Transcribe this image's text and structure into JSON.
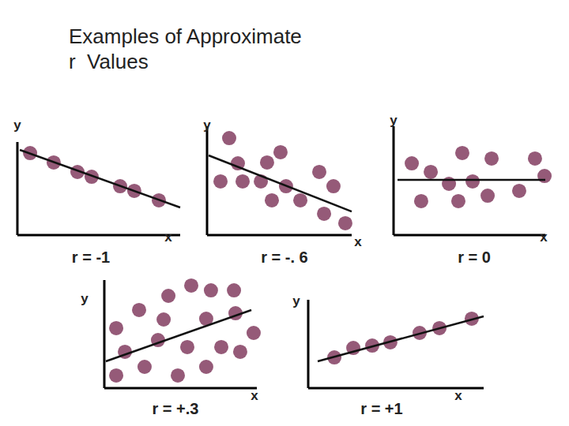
{
  "title": [
    "Examples of Approximate",
    "r  Values"
  ],
  "chart_data": [
    {
      "type": "scatter",
      "title": "r = -1",
      "x_label": "x",
      "y_label": "y",
      "x": [
        0.78,
        2.23,
        3.69,
        4.56,
        6.31,
        7.18,
        8.69
      ],
      "y": [
        8.81,
        7.8,
        6.78,
        6.27,
        5.25,
        4.75,
        3.73
      ],
      "fit_x": [
        0.15,
        10
      ],
      "fit_y": [
        9.15,
        2.97
      ],
      "xlim": [
        0,
        10
      ],
      "ylim": [
        0,
        10
      ],
      "tick_labels": false,
      "color": "#955a78",
      "marker": "circle"
    },
    {
      "type": "scatter",
      "title": "r = -. 6",
      "x_label": "x",
      "y_label": "y",
      "x": [
        1.53,
        2.13,
        4.15,
        5.08,
        7.76,
        0.93,
        2.46,
        3.72,
        5.46,
        8.74,
        4.48,
        6.45,
        8.09,
        9.56
      ],
      "y": [
        8.91,
        6.59,
        6.67,
        7.61,
        5.8,
        4.93,
        4.93,
        4.93,
        4.49,
        4.49,
        3.19,
        3.19,
        1.96,
        1.09
      ],
      "fit_x": [
        0.11,
        10
      ],
      "fit_y": [
        7.32,
        2.17
      ],
      "xlim": [
        0,
        10
      ],
      "ylim": [
        0,
        10
      ],
      "tick_labels": false,
      "color": "#955a78",
      "marker": "circle"
    },
    {
      "type": "scatter",
      "title": "r = 0",
      "x_label": "x",
      "y_label": "y",
      "x": [
        1.2,
        2.45,
        4.53,
        6.46,
        9.32,
        9.95,
        1.82,
        3.65,
        5.21,
        4.27,
        6.2,
        8.28
      ],
      "y": [
        6.59,
        5.8,
        7.54,
        7.03,
        7.03,
        5.43,
        3.12,
        4.71,
        4.93,
        3.12,
        3.62,
        4.06
      ],
      "fit_x": [
        0.26,
        10
      ],
      "fit_y": [
        5.07,
        5.07
      ],
      "xlim": [
        0,
        10
      ],
      "ylim": [
        0,
        10
      ],
      "tick_labels": false,
      "color": "#955a78",
      "marker": "circle"
    },
    {
      "type": "scatter",
      "title": "r = +.3",
      "x_label": "x",
      "y_label": "y",
      "x": [
        5.7,
        6.99,
        8.5,
        4.2,
        2.28,
        3.89,
        6.68,
        8.6,
        0.78,
        9.79,
        3.52,
        5.44,
        7.67,
        1.35,
        8.91,
        0.78,
        2.64,
        4.82,
        6.68
      ],
      "y": [
        9.49,
        9.05,
        9.05,
        8.54,
        7.23,
        6.35,
        6.42,
        6.93,
        5.55,
        5.11,
        4.45,
        3.8,
        3.8,
        3.36,
        3.36,
        1.17,
        1.97,
        1.17,
        1.97
      ],
      "fit_x": [
        0.1,
        9.64
      ],
      "fit_y": [
        2.48,
        7.23
      ],
      "xlim": [
        0,
        10
      ],
      "ylim": [
        0,
        10
      ],
      "tick_labels": false,
      "color": "#955a78",
      "marker": "circle"
    },
    {
      "type": "scatter",
      "title": "r = +1",
      "x_label": "x",
      "y_label": "y",
      "x": [
        1.49,
        2.57,
        3.65,
        4.68,
        6.35,
        7.48,
        9.32
      ],
      "y": [
        3.48,
        4.55,
        4.82,
        5.18,
        6.25,
        6.79,
        7.86
      ],
      "fit_x": [
        0.54,
        10
      ],
      "fit_y": [
        3.04,
        8.13
      ],
      "xlim": [
        0,
        10
      ],
      "ylim": [
        0,
        10
      ],
      "tick_labels": false,
      "color": "#955a78",
      "marker": "circle"
    }
  ]
}
